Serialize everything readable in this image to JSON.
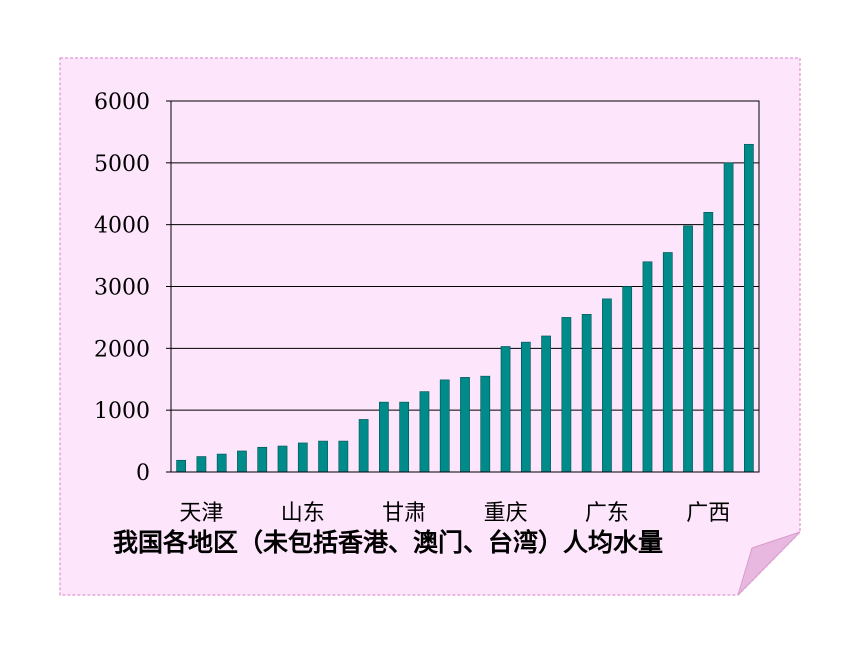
{
  "chart_data": {
    "type": "bar",
    "title": "",
    "xlabel": "",
    "ylabel": "",
    "ylim": [
      0,
      6000
    ],
    "yticks": [
      0,
      1000,
      2000,
      3000,
      4000,
      5000,
      6000
    ],
    "grid": true,
    "x_labels_shown": [
      {
        "label": "天津",
        "bar_index": 1
      },
      {
        "label": "山东",
        "bar_index": 6
      },
      {
        "label": "甘肃",
        "bar_index": 11
      },
      {
        "label": "重庆",
        "bar_index": 16
      },
      {
        "label": "广东",
        "bar_index": 21
      },
      {
        "label": "广西",
        "bar_index": 26
      }
    ],
    "values": [
      190,
      250,
      290,
      340,
      400,
      420,
      470,
      500,
      500,
      850,
      1130,
      1130,
      1300,
      1490,
      1530,
      1550,
      2030,
      2100,
      2200,
      2500,
      2550,
      2800,
      3000,
      3400,
      3550,
      3980,
      4200,
      5000,
      5300
    ],
    "bar_color": "#008b8b"
  },
  "caption": "我国各地区（未包括香港、澳门、台湾）人均水量",
  "colors": {
    "card_fill": "#fde6fb",
    "card_border": "#e7a6d8",
    "fold_fill": "#e9b8e0"
  }
}
